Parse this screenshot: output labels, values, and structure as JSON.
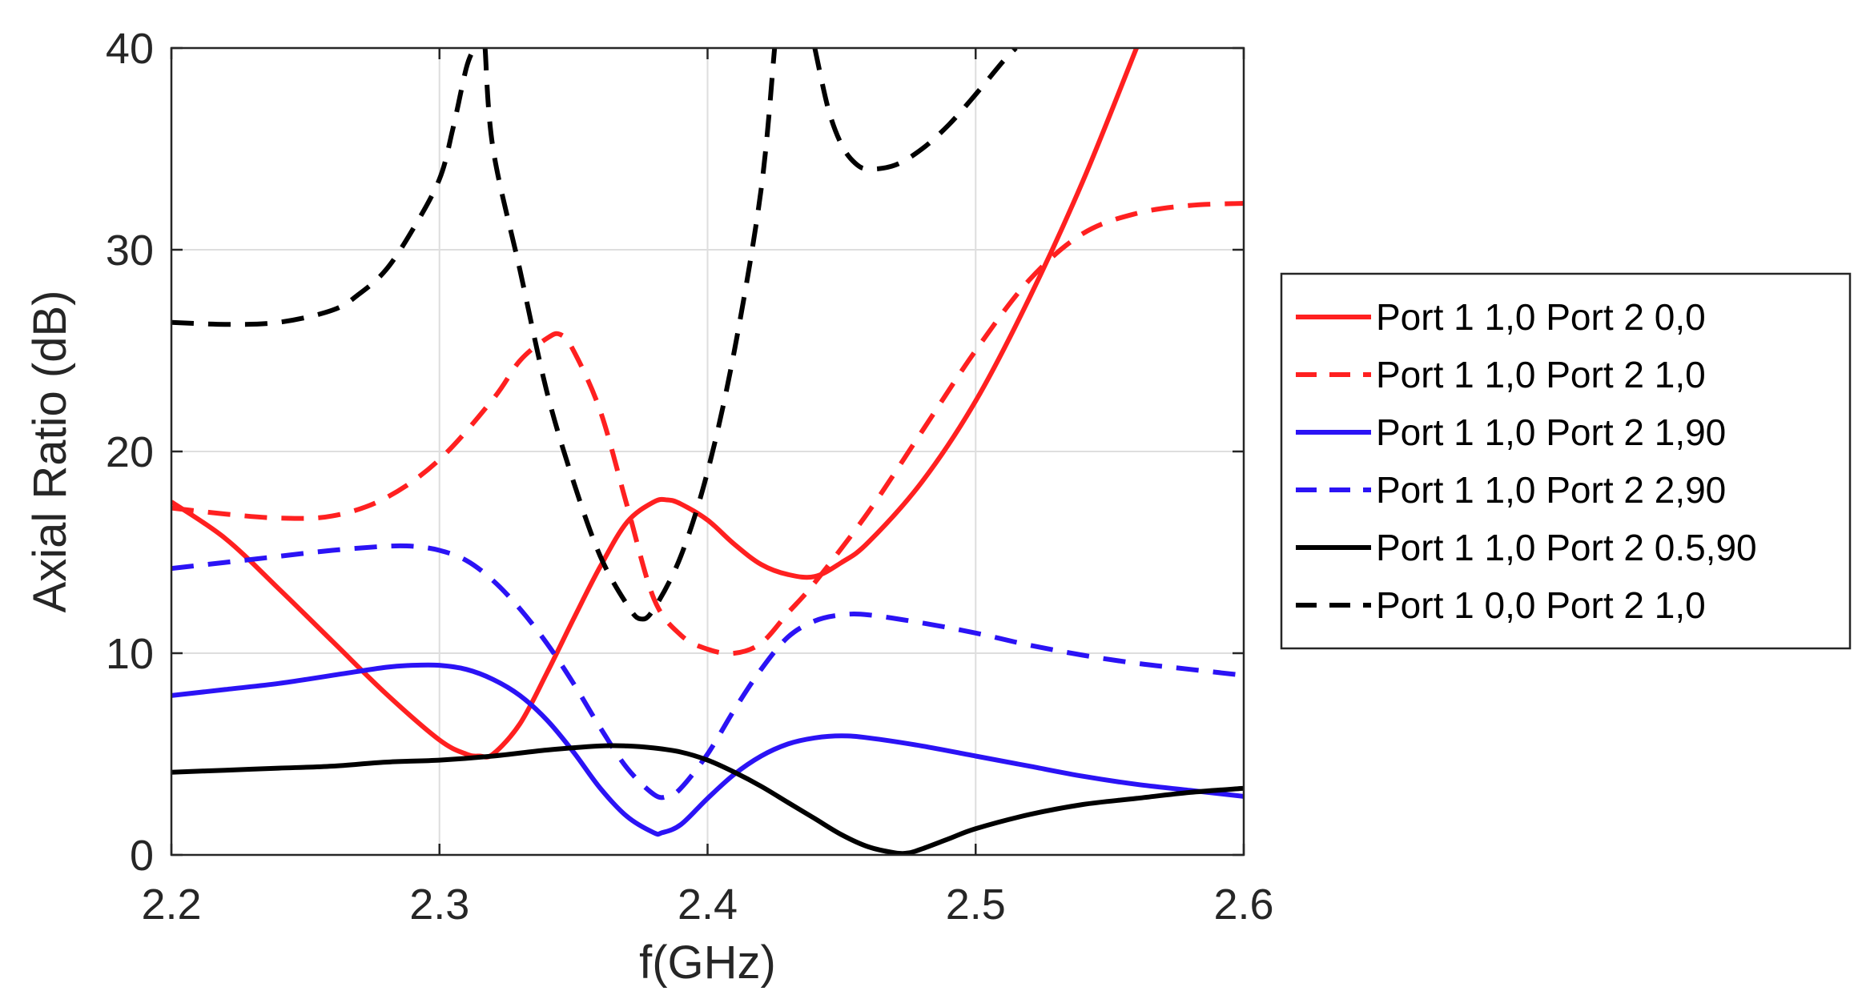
{
  "chart_data": {
    "type": "line",
    "title": "",
    "xlabel": "f(GHz)",
    "ylabel": "Axial Ratio (dB)",
    "xlim": [
      2.2,
      2.6
    ],
    "ylim": [
      0,
      40
    ],
    "xticks": [
      2.2,
      2.3,
      2.4,
      2.5,
      2.6
    ],
    "xtick_labels": [
      "2.2",
      "2.3",
      "2.4",
      "2.5",
      "2.6"
    ],
    "yticks": [
      0,
      10,
      20,
      30,
      40
    ],
    "ytick_labels": [
      "0",
      "10",
      "20",
      "30",
      "40"
    ],
    "grid": true,
    "legend_position": "outside-right",
    "series": [
      {
        "name": "Port 1 1,0 Port 2 0,0",
        "color": "#ff2020",
        "dash": "solid",
        "x": [
          2.2,
          2.22,
          2.24,
          2.26,
          2.28,
          2.3,
          2.31,
          2.315,
          2.32,
          2.33,
          2.34,
          2.35,
          2.36,
          2.37,
          2.38,
          2.385,
          2.39,
          2.4,
          2.41,
          2.42,
          2.43,
          2.44,
          2.45,
          2.46,
          2.48,
          2.5,
          2.52,
          2.54,
          2.56
        ],
        "y": [
          17.5,
          15.7,
          13.2,
          10.6,
          8.0,
          5.7,
          5.0,
          4.9,
          5.0,
          6.5,
          9.0,
          11.7,
          14.3,
          16.5,
          17.5,
          17.6,
          17.4,
          16.6,
          15.4,
          14.4,
          13.9,
          13.8,
          14.5,
          15.5,
          18.5,
          22.5,
          27.6,
          33.4,
          40.0
        ]
      },
      {
        "name": "Port 1 1,0 Port 2 1,0",
        "color": "#ff2020",
        "dash": "dashed",
        "x": [
          2.2,
          2.22,
          2.24,
          2.26,
          2.28,
          2.3,
          2.32,
          2.33,
          2.34,
          2.345,
          2.35,
          2.36,
          2.37,
          2.38,
          2.39,
          2.4,
          2.41,
          2.42,
          2.43,
          2.44,
          2.46,
          2.48,
          2.5,
          2.52,
          2.54,
          2.56,
          2.58,
          2.6
        ],
        "y": [
          17.2,
          16.9,
          16.7,
          16.8,
          17.7,
          19.6,
          22.6,
          24.5,
          25.6,
          25.8,
          25.0,
          22.0,
          17.3,
          12.7,
          10.9,
          10.2,
          10.0,
          10.5,
          12.0,
          13.5,
          17.0,
          21.0,
          25.0,
          28.5,
          30.8,
          31.8,
          32.2,
          32.3
        ]
      },
      {
        "name": "Port 1 1,0 Port 2 1,90",
        "color": "#2b13f5",
        "dash": "solid",
        "x": [
          2.2,
          2.22,
          2.24,
          2.26,
          2.28,
          2.29,
          2.3,
          2.31,
          2.32,
          2.33,
          2.34,
          2.35,
          2.36,
          2.37,
          2.38,
          2.383,
          2.39,
          2.4,
          2.41,
          2.42,
          2.43,
          2.44,
          2.45,
          2.46,
          2.48,
          2.5,
          2.52,
          2.54,
          2.56,
          2.58,
          2.6
        ],
        "y": [
          7.9,
          8.2,
          8.5,
          8.9,
          9.3,
          9.4,
          9.4,
          9.2,
          8.7,
          7.9,
          6.7,
          5.1,
          3.3,
          1.9,
          1.1,
          1.1,
          1.5,
          2.8,
          4.0,
          4.9,
          5.5,
          5.8,
          5.9,
          5.8,
          5.4,
          4.9,
          4.4,
          3.9,
          3.5,
          3.2,
          2.9
        ]
      },
      {
        "name": "Port 1 1,0 Port 2 2,90",
        "color": "#2b13f5",
        "dash": "dashed",
        "x": [
          2.2,
          2.22,
          2.24,
          2.26,
          2.28,
          2.29,
          2.3,
          2.31,
          2.32,
          2.33,
          2.34,
          2.35,
          2.36,
          2.37,
          2.38,
          2.385,
          2.39,
          2.4,
          2.41,
          2.42,
          2.43,
          2.44,
          2.45,
          2.46,
          2.48,
          2.5,
          2.52,
          2.54,
          2.56,
          2.58,
          2.6
        ],
        "y": [
          14.2,
          14.5,
          14.8,
          15.1,
          15.3,
          15.3,
          15.1,
          14.6,
          13.6,
          12.2,
          10.5,
          8.5,
          6.3,
          4.3,
          3.0,
          2.9,
          3.3,
          5.0,
          7.2,
          9.2,
          10.8,
          11.6,
          11.9,
          11.9,
          11.5,
          11.0,
          10.4,
          9.9,
          9.5,
          9.2,
          8.9
        ]
      },
      {
        "name": "Port 1 1,0 Port 2 0.5,90",
        "color": "#000000",
        "dash": "solid",
        "x": [
          2.2,
          2.22,
          2.24,
          2.26,
          2.28,
          2.3,
          2.32,
          2.34,
          2.36,
          2.37,
          2.38,
          2.39,
          2.4,
          2.41,
          2.42,
          2.43,
          2.44,
          2.45,
          2.46,
          2.47,
          2.475,
          2.48,
          2.49,
          2.5,
          2.52,
          2.54,
          2.56,
          2.58,
          2.6
        ],
        "y": [
          4.1,
          4.2,
          4.3,
          4.4,
          4.6,
          4.7,
          4.9,
          5.2,
          5.4,
          5.4,
          5.3,
          5.1,
          4.7,
          4.1,
          3.4,
          2.6,
          1.8,
          1.0,
          0.4,
          0.1,
          0.1,
          0.3,
          0.8,
          1.3,
          2.0,
          2.5,
          2.8,
          3.1,
          3.3
        ]
      },
      {
        "name": "Port 1 0,0 Port 2 1,0",
        "color": "#000000",
        "dash": "dashed",
        "segments": [
          {
            "x": [
              2.2,
              2.22,
              2.24,
              2.26,
              2.27,
              2.28,
              2.29,
              2.3,
              2.305,
              2.31,
              2.313
            ],
            "y": [
              26.4,
              26.3,
              26.4,
              27.0,
              27.8,
              29.0,
              31.0,
              33.5,
              36.0,
              39.0,
              40.0
            ]
          },
          {
            "x": [
              2.317,
              2.32,
              2.33,
              2.34,
              2.35,
              2.36,
              2.37,
              2.375,
              2.38,
              2.39,
              2.4,
              2.41,
              2.42,
              2.425
            ],
            "y": [
              40.0,
              35.0,
              29.0,
              23.0,
              18.5,
              14.8,
              12.4,
              11.7,
              12.2,
              14.8,
              19.0,
              25.0,
              33.0,
              40.0
            ]
          },
          {
            "x": [
              2.44,
              2.445,
              2.45,
              2.455,
              2.46,
              2.47,
              2.48,
              2.49,
              2.5,
              2.51,
              2.515
            ],
            "y": [
              40.0,
              37.0,
              35.2,
              34.3,
              34.0,
              34.2,
              35.0,
              36.2,
              37.7,
              39.3,
              40.0
            ]
          }
        ]
      }
    ]
  }
}
